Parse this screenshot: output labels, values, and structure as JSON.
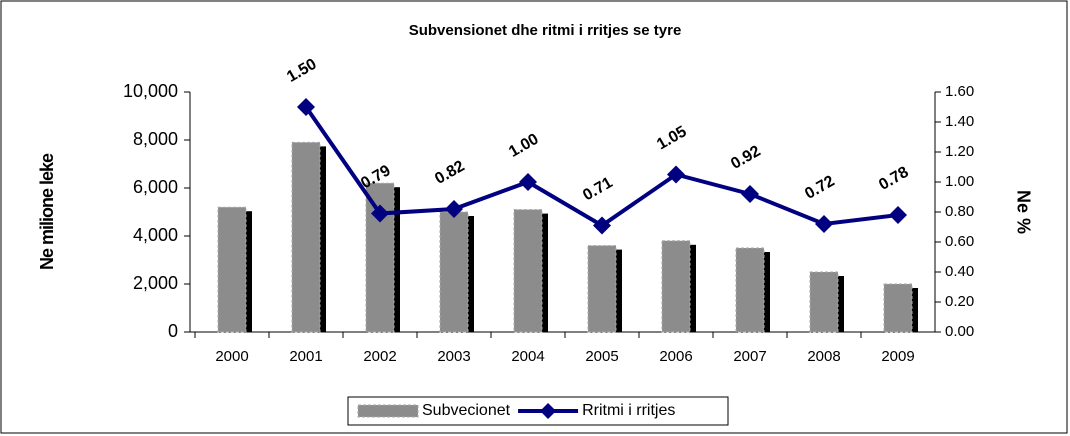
{
  "chart_data": {
    "type": "bar-line",
    "title": "Subvensionet dhe ritmi i rritjes se tyre",
    "ylabel": "Ne milione leke",
    "y2label": "Ne %",
    "categories": [
      "2000",
      "2001",
      "2002",
      "2003",
      "2004",
      "2005",
      "2006",
      "2007",
      "2008",
      "2009"
    ],
    "series": [
      {
        "name": "Subvecionet",
        "type": "bar",
        "color": "#8c8c8c",
        "values": [
          5200,
          7900,
          6200,
          5000,
          5100,
          3600,
          3800,
          3500,
          2500,
          2000
        ]
      },
      {
        "name": "Rritmi i rritjes",
        "type": "line",
        "axis": "y2",
        "color": "#000080",
        "values": [
          null,
          1.5,
          0.79,
          0.82,
          1.0,
          0.71,
          1.05,
          0.92,
          0.72,
          0.78
        ],
        "value_labels": [
          null,
          "1.50",
          "0.79",
          "0.82",
          "1.00",
          "0.71",
          "1.05",
          "0.92",
          "0.72",
          "0.78"
        ]
      }
    ],
    "ylim": [
      0,
      10000
    ],
    "yticks": [
      0,
      {
        "value": 2000,
        "label": "2,000"
      },
      {
        "value": 4000,
        "label": "4,000"
      },
      {
        "value": 6000,
        "label": "6,000"
      },
      {
        "value": 8000,
        "label": "8,000"
      },
      {
        "value": 10000,
        "label": "10,000"
      }
    ],
    "y2lim": [
      0,
      1.6
    ],
    "y2ticks": [
      {
        "value": 0,
        "label": "0.00"
      },
      {
        "value": 0.2,
        "label": "0.20"
      },
      {
        "value": 0.4,
        "label": "0.40"
      },
      {
        "value": 0.6,
        "label": "0.60"
      },
      {
        "value": 0.8,
        "label": "0.80"
      },
      {
        "value": 1.0,
        "label": "1.00"
      },
      {
        "value": 1.2,
        "label": "1.20"
      },
      {
        "value": 1.4,
        "label": "1.40"
      },
      {
        "value": 1.6,
        "label": "1.60"
      }
    ],
    "legend": "bottom"
  }
}
